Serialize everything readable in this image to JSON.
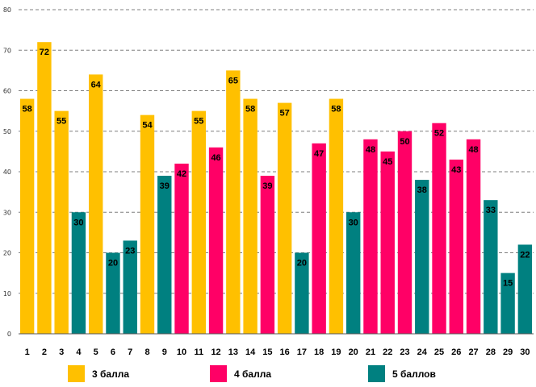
{
  "chart_data": {
    "type": "bar",
    "title": "",
    "xlabel": "",
    "ylabel": "",
    "ylim": [
      0,
      80
    ],
    "yticks": [
      0,
      10,
      20,
      30,
      40,
      50,
      60,
      70,
      80
    ],
    "grid": true,
    "legend_position": "bottom",
    "categories": [
      "1",
      "2",
      "3",
      "4",
      "5",
      "6",
      "7",
      "8",
      "9",
      "10",
      "11",
      "12",
      "13",
      "14",
      "15",
      "16",
      "17",
      "18",
      "19",
      "20",
      "21",
      "22",
      "23",
      "24",
      "25",
      "26",
      "27",
      "28",
      "29",
      "30"
    ],
    "values": [
      58,
      72,
      55,
      30,
      64,
      20,
      23,
      54,
      39,
      42,
      55,
      46,
      65,
      58,
      39,
      57,
      20,
      47,
      58,
      30,
      48,
      45,
      50,
      38,
      52,
      43,
      48,
      33,
      15,
      22
    ],
    "groups": [
      0,
      0,
      0,
      2,
      0,
      2,
      2,
      0,
      2,
      1,
      0,
      1,
      0,
      0,
      1,
      0,
      2,
      1,
      0,
      2,
      1,
      1,
      1,
      2,
      1,
      1,
      1,
      2,
      2,
      2
    ],
    "series": [
      {
        "name": "3 балла",
        "color": "#FFC000"
      },
      {
        "name": "4 балла",
        "color": "#FF0066"
      },
      {
        "name": "5 баллов",
        "color": "#008080"
      }
    ]
  }
}
